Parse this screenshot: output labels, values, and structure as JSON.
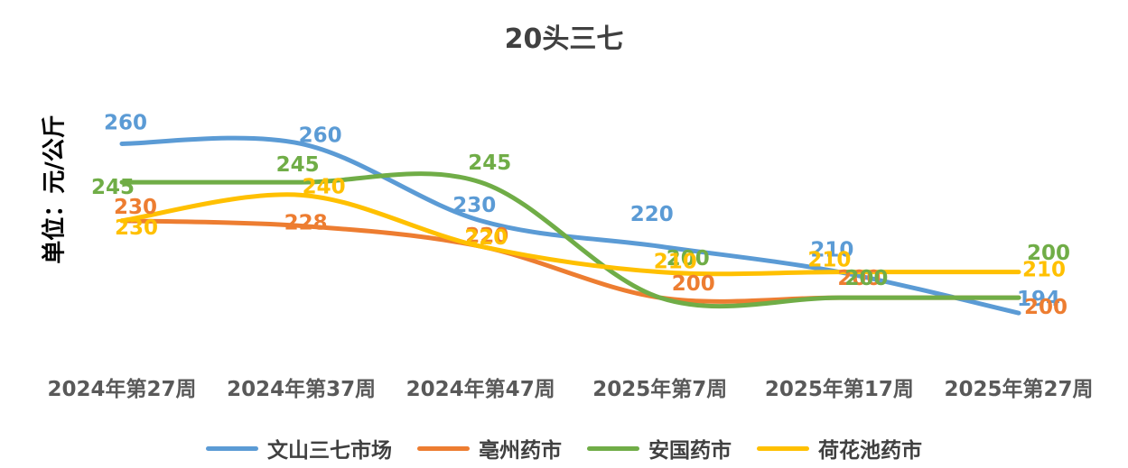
{
  "chart_data": {
    "type": "line",
    "title": "20头三七",
    "ylabel": "单位：元/公斤",
    "xlabel": "",
    "categories": [
      "2024年第27周",
      "2024年第37周",
      "2024年第47周",
      "2025年第7周",
      "2025年第17周",
      "2025年第27周"
    ],
    "ylim": [
      180,
      270
    ],
    "smooth": true,
    "grid": false,
    "legend_position": "bottom",
    "series": [
      {
        "name": "文山三七市场",
        "color": "#5B9BD5",
        "values": [
          260,
          260,
          230,
          220,
          210,
          194
        ]
      },
      {
        "name": "亳州药市",
        "color": "#ED7D31",
        "values": [
          230,
          228,
          220,
          200,
          200,
          200
        ]
      },
      {
        "name": "安国药市",
        "color": "#70AD47",
        "values": [
          245,
          245,
          245,
          200,
          200,
          200
        ]
      },
      {
        "name": "荷花池药市",
        "color": "#FFC000",
        "values": [
          230,
          240,
          220,
          210,
          210,
          210
        ]
      }
    ]
  }
}
